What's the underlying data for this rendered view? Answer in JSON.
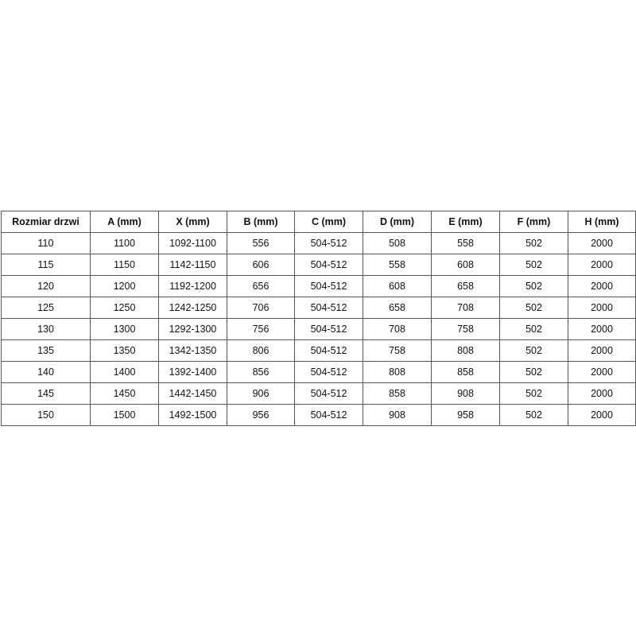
{
  "table": {
    "headers": [
      "Rozmiar drzwi",
      "A (mm)",
      "X (mm)",
      "B (mm)",
      "C (mm)",
      "D (mm)",
      "E (mm)",
      "F (mm)",
      "H (mm)"
    ],
    "rows": [
      [
        "110",
        "1100",
        "1092-1100",
        "556",
        "504-512",
        "508",
        "558",
        "502",
        "2000"
      ],
      [
        "115",
        "1150",
        "1142-1150",
        "606",
        "504-512",
        "558",
        "608",
        "502",
        "2000"
      ],
      [
        "120",
        "1200",
        "1192-1200",
        "656",
        "504-512",
        "608",
        "658",
        "502",
        "2000"
      ],
      [
        "125",
        "1250",
        "1242-1250",
        "706",
        "504-512",
        "658",
        "708",
        "502",
        "2000"
      ],
      [
        "130",
        "1300",
        "1292-1300",
        "756",
        "504-512",
        "708",
        "758",
        "502",
        "2000"
      ],
      [
        "135",
        "1350",
        "1342-1350",
        "806",
        "504-512",
        "758",
        "808",
        "502",
        "2000"
      ],
      [
        "140",
        "1400",
        "1392-1400",
        "856",
        "504-512",
        "808",
        "858",
        "502",
        "2000"
      ],
      [
        "145",
        "1450",
        "1442-1450",
        "906",
        "504-512",
        "858",
        "908",
        "502",
        "2000"
      ],
      [
        "150",
        "1500",
        "1492-1500",
        "956",
        "504-512",
        "908",
        "958",
        "502",
        "2000"
      ]
    ]
  }
}
